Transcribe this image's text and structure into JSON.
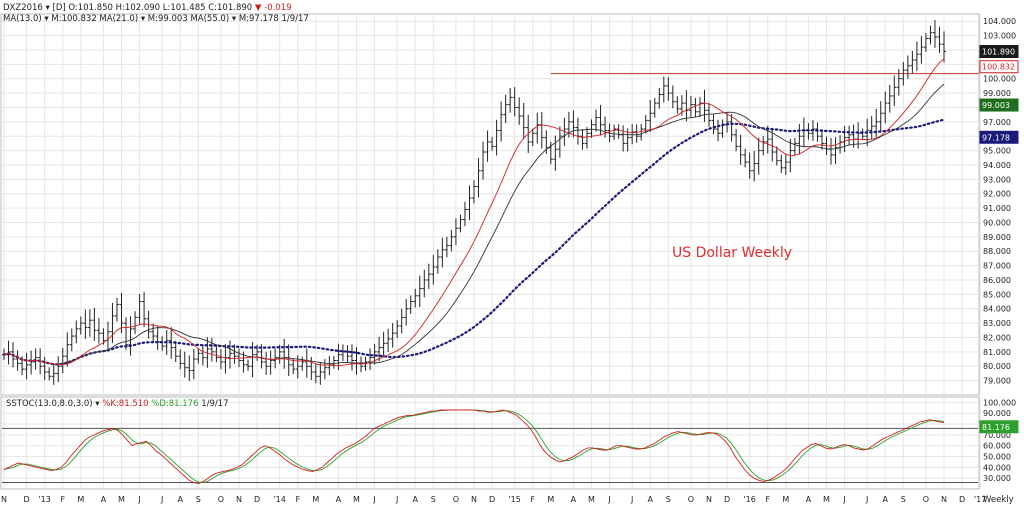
{
  "header": {
    "symbol": "DXZ2016",
    "period": "[D]",
    "open": "O:101.850",
    "high": "H:102.090",
    "low": "L:101.485",
    "close": "C:101.890",
    "change": "-0.019",
    "ma_line": "MA(13.0) ▾ M:100.832 MA(21.0) ▾ M:99.003 MA(55.0) ▾ M:97.178 1/9/17"
  },
  "annotation": "US Dollar Weekly",
  "stoch_header": {
    "name": "SSTOC(13.0,8.0,3.0) ▾",
    "k": "%K:81.510",
    "d": "%D:81.176",
    "date": "1/9/17"
  },
  "badges": {
    "last": "101.890",
    "ma13": "100.832",
    "ma21": "99.003",
    "ma55": "97.178",
    "stoch_d": "81.176"
  },
  "colors": {
    "bar": "#222222",
    "ma13": "#d32020",
    "ma21": "#333333",
    "ma55": "#1a1a7a",
    "stoch_k": "#d32020",
    "stoch_d": "#2ca02c",
    "annotation": "#e03030",
    "grid": "#e6e6e6",
    "resistance": "#c0392b"
  },
  "x_axis_label": "Weekly",
  "chart_data": [
    {
      "type": "bar",
      "subtype": "ohlc-price",
      "title": "DXZ2016",
      "annotation": "US Dollar Weekly",
      "ylim": [
        78,
        104.5
      ],
      "yticks": [
        79,
        80,
        81,
        82,
        83,
        84,
        85,
        86,
        87,
        88,
        89,
        90,
        91,
        92,
        93,
        94,
        95,
        96,
        97,
        98,
        99,
        100,
        101,
        102,
        103,
        104
      ],
      "x_labels": [
        "N",
        "D",
        "'13",
        "F",
        "M",
        "A",
        "M",
        "J",
        "J",
        "A",
        "S",
        "O",
        "N",
        "D",
        "'14",
        "F",
        "M",
        "A",
        "M",
        "J",
        "J",
        "A",
        "S",
        "O",
        "N",
        "D",
        "'15",
        "F",
        "M",
        "A",
        "M",
        "J",
        "J",
        "A",
        "S",
        "O",
        "N",
        "D",
        "'16",
        "F",
        "M",
        "A",
        "M",
        "J",
        "J",
        "A",
        "S",
        "O",
        "N",
        "D",
        "'17"
      ],
      "x_label_weeks": [
        0,
        5,
        9,
        13,
        17,
        22,
        26,
        30,
        35,
        39,
        43,
        48,
        52,
        56,
        61,
        65,
        69,
        74,
        78,
        82,
        87,
        91,
        95,
        100,
        104,
        108,
        113,
        117,
        121,
        126,
        130,
        134,
        139,
        143,
        147,
        152,
        156,
        160,
        165,
        169,
        173,
        178,
        182,
        186,
        191,
        195,
        199,
        204,
        208,
        212,
        216
      ],
      "closes": [
        80.8,
        81,
        80.5,
        80.2,
        79.8,
        80.1,
        80.3,
        80.6,
        80.0,
        79.6,
        79.3,
        79.5,
        80.0,
        80.7,
        81.5,
        82.1,
        82.6,
        83.0,
        82.7,
        83.2,
        82.5,
        82.3,
        81.8,
        82.4,
        83.5,
        84.3,
        83.0,
        81.5,
        82.6,
        83.4,
        84.5,
        83.3,
        82.4,
        82.1,
        81.7,
        81.4,
        81.8,
        81.3,
        80.7,
        80.2,
        79.9,
        79.7,
        80.5,
        80.9,
        80.6,
        81.2,
        81.0,
        80.6,
        80.3,
        80.6,
        80.9,
        80.7,
        80.4,
        80.1,
        80.0,
        80.8,
        81.0,
        80.3,
        80.0,
        80.4,
        80.6,
        81.0,
        80.6,
        80.1,
        79.8,
        80.0,
        80.3,
        80.0,
        79.6,
        79.3,
        79.6,
        79.9,
        80.1,
        80.4,
        80.8,
        81.0,
        80.7,
        80.4,
        80.2,
        80.0,
        80.3,
        80.6,
        81.0,
        81.3,
        81.6,
        81.9,
        82.3,
        82.8,
        83.4,
        84.0,
        84.5,
        84.9,
        85.4,
        86.0,
        86.4,
        86.9,
        87.6,
        88.1,
        88.4,
        89.0,
        89.6,
        90.2,
        90.9,
        91.7,
        92.5,
        93.6,
        94.9,
        95.6,
        95.3,
        96.4,
        97.5,
        98.2,
        98.7,
        98.0,
        97.4,
        96.6,
        95.6,
        96.2,
        96.8,
        95.9,
        95.2,
        94.4,
        95.1,
        96.0,
        96.5,
        97.0,
        96.6,
        96.0,
        95.5,
        96.2,
        96.8,
        97.3,
        96.8,
        96.4,
        96.0,
        96.5,
        96.1,
        95.5,
        95.9,
        96.3,
        96.0,
        96.5,
        97.1,
        97.6,
        98.3,
        98.9,
        99.5,
        99.0,
        98.4,
        97.9,
        98.3,
        97.8,
        98.2,
        97.7,
        98.3,
        97.8,
        97.1,
        96.5,
        96.2,
        96.8,
        97.0,
        96.1,
        95.3,
        94.7,
        94.2,
        93.6,
        94.1,
        95.0,
        95.6,
        95.8,
        94.9,
        94.3,
        93.8,
        94.2,
        95.0,
        95.5,
        96.0,
        96.4,
        96.2,
        96.5,
        96.0,
        95.5,
        95.1,
        94.7,
        95.2,
        95.6,
        95.9,
        96.1,
        95.8,
        96.2,
        96.0,
        96.4,
        96.7,
        97.0,
        97.6,
        98.3,
        98.8,
        99.4,
        100.0,
        100.6,
        100.9,
        101.3,
        101.7,
        102.2,
        102.8,
        103.2,
        102.9,
        102.4,
        101.9
      ],
      "moving_averages": [
        {
          "name": "MA(13.0)",
          "period": 13,
          "last": 100.832
        },
        {
          "name": "MA(21.0)",
          "period": 21,
          "last": 99.003
        },
        {
          "name": "MA(55.0)",
          "period": 55,
          "last": 97.178
        }
      ],
      "resistance_level": 100.35
    },
    {
      "type": "line",
      "subtype": "stochastic",
      "title": "SSTOC(13.0,8.0,3.0)",
      "ylim": [
        20,
        105
      ],
      "yticks": [
        30,
        40,
        50,
        60,
        70,
        80,
        90,
        100
      ],
      "reference_lines": [
        26,
        76
      ],
      "series": [
        {
          "name": "%K",
          "last": 81.51
        },
        {
          "name": "%D",
          "last": 81.176
        }
      ],
      "k_values": [
        38,
        40,
        42,
        44,
        43,
        42,
        41,
        40,
        39,
        38,
        37,
        38,
        40,
        44,
        50,
        55,
        60,
        65,
        68,
        70,
        72,
        74,
        75,
        76,
        74,
        70,
        65,
        60,
        62,
        63,
        64,
        60,
        55,
        52,
        48,
        44,
        40,
        36,
        32,
        28,
        26,
        25,
        27,
        30,
        33,
        35,
        36,
        37,
        38,
        40,
        42,
        46,
        50,
        54,
        58,
        60,
        58,
        55,
        52,
        48,
        45,
        42,
        40,
        38,
        37,
        36,
        38,
        40,
        44,
        48,
        52,
        55,
        58,
        60,
        62,
        65,
        68,
        72,
        76,
        78,
        80,
        82,
        84,
        86,
        87,
        88,
        88,
        89,
        90,
        91,
        92,
        92,
        93,
        93,
        93,
        93,
        93,
        93,
        93,
        93,
        92,
        92,
        91,
        91,
        92,
        93,
        92,
        90,
        88,
        84,
        80,
        75,
        68,
        60,
        54,
        50,
        47,
        45,
        46,
        48,
        50,
        53,
        56,
        58,
        58,
        57,
        56,
        56,
        58,
        60,
        60,
        59,
        58,
        57,
        57,
        58,
        60,
        62,
        65,
        68,
        70,
        72,
        73,
        72,
        71,
        70,
        70,
        71,
        72,
        72,
        71,
        68,
        64,
        58,
        50,
        44,
        38,
        33,
        30,
        28,
        27,
        28,
        30,
        33,
        36,
        40,
        45,
        50,
        55,
        58,
        61,
        62,
        60,
        58,
        57,
        58,
        60,
        61,
        60,
        58,
        57,
        56,
        57,
        60,
        63,
        66,
        68,
        70,
        72,
        74,
        76,
        78,
        80,
        82,
        83,
        84,
        83,
        82,
        81.5
      ]
    }
  ]
}
